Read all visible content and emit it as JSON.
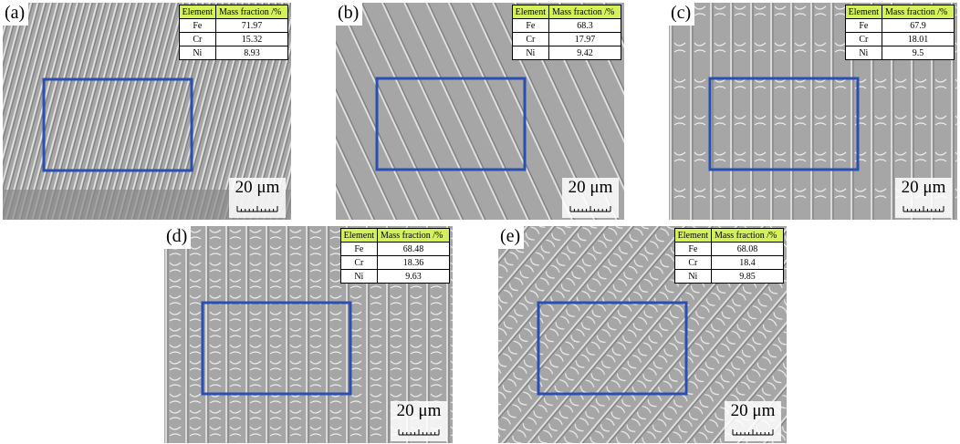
{
  "panels": [
    {
      "label": "(a)",
      "table": {
        "header": [
          "Element",
          "Mass fraction /%"
        ],
        "rows": [
          [
            "Fe",
            "71.97"
          ],
          [
            "Cr",
            "15.32"
          ],
          [
            "Ni",
            "8.93"
          ]
        ]
      },
      "scale": "20 μm"
    },
    {
      "label": "(b)",
      "table": {
        "header": [
          "Element",
          "Mass fraction /%"
        ],
        "rows": [
          [
            "Fe",
            "68.3"
          ],
          [
            "Cr",
            "17.97"
          ],
          [
            "Ni",
            "9.42"
          ]
        ]
      },
      "scale": "20 μm"
    },
    {
      "label": "(c)",
      "table": {
        "header": [
          "Element",
          "Mass fraction /%"
        ],
        "rows": [
          [
            "Fe",
            "67.9"
          ],
          [
            "Cr",
            "18.01"
          ],
          [
            "Ni",
            "9.5"
          ]
        ]
      },
      "scale": "20 μm"
    },
    {
      "label": "(d)",
      "table": {
        "header": [
          "Element",
          "Mass fraction /%"
        ],
        "rows": [
          [
            "Fe",
            "68.48"
          ],
          [
            "Cr",
            "18.36"
          ],
          [
            "Ni",
            "9.63"
          ]
        ]
      },
      "scale": "20 μm"
    },
    {
      "label": "(e)",
      "table": {
        "header": [
          "Element",
          "Mass fraction /%"
        ],
        "rows": [
          [
            "Fe",
            "68.08"
          ],
          [
            "Cr",
            "18.4"
          ],
          [
            "Ni",
            "9.85"
          ]
        ]
      },
      "scale": "20 μm"
    }
  ]
}
